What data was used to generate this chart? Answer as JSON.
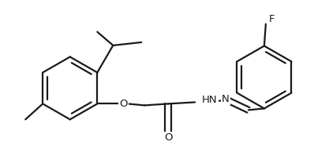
{
  "background": "#ffffff",
  "line_color": "#1a1a1a",
  "line_width": 1.6,
  "font_size": 9.5,
  "figsize": [
    4.17,
    1.85
  ],
  "dpi": 100,
  "xlim": [
    -0.5,
    8.5
  ],
  "ylim": [
    -1.8,
    2.8
  ]
}
